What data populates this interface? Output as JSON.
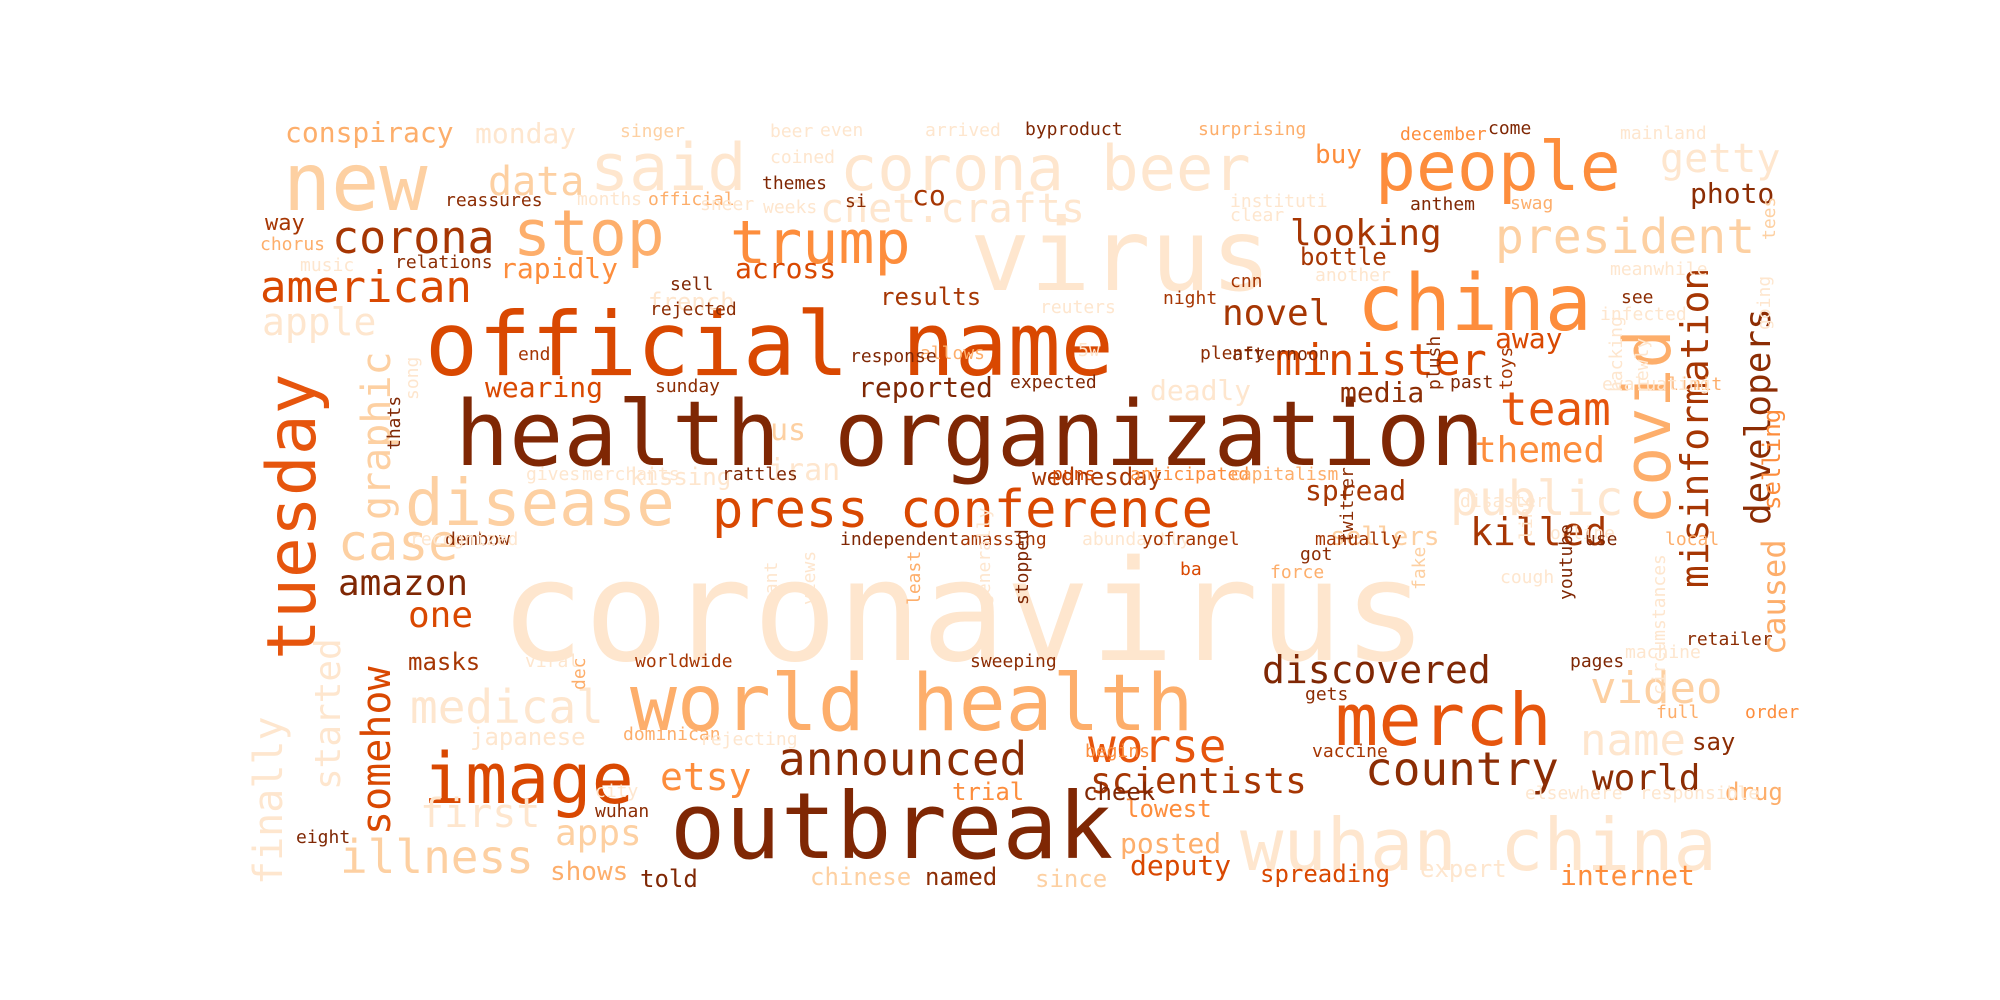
{
  "words": [
    {
      "text": "coronavirus",
      "color": "#fee6ce"
    },
    {
      "text": "health organization",
      "color": "#7f2704"
    },
    {
      "text": "official name",
      "color": "#d94801"
    },
    {
      "text": "outbreak",
      "color": "#7f2704"
    },
    {
      "text": "world health",
      "color": "#fdae6b"
    },
    {
      "text": "virus",
      "color": "#fee6ce"
    },
    {
      "text": "new",
      "color": "#fdd0a2"
    },
    {
      "text": "said",
      "color": "#fee6ce"
    },
    {
      "text": "corona beer",
      "color": "#fee6ce"
    },
    {
      "text": "people",
      "color": "#fd8d3c"
    },
    {
      "text": "china",
      "color": "#fd8d3c"
    },
    {
      "text": "press conference",
      "color": "#d94801"
    },
    {
      "text": "disease",
      "color": "#fdd0a2"
    },
    {
      "text": "stop",
      "color": "#fdae6b"
    },
    {
      "text": "trump",
      "color": "#fd8d3c"
    },
    {
      "text": "tuesday",
      "color": "#e6550d"
    },
    {
      "text": "image",
      "color": "#d94801"
    },
    {
      "text": "merch",
      "color": "#e6550d"
    },
    {
      "text": "wuhan china",
      "color": "#fee6ce"
    },
    {
      "text": "covid",
      "color": "#fdae6b"
    },
    {
      "text": "corona",
      "color": "#a63603"
    },
    {
      "text": "american",
      "color": "#d94801"
    },
    {
      "text": "president",
      "color": "#fdd0a2"
    },
    {
      "text": "minister",
      "color": "#d94801"
    },
    {
      "text": "misinformation",
      "color": "#a63603"
    },
    {
      "text": "developers",
      "color": "#8c2d04"
    },
    {
      "text": "caused",
      "color": "#fdae6b"
    },
    {
      "text": "cnet.crafts",
      "color": "#fee6ce"
    },
    {
      "text": "data",
      "color": "#fdd0a2"
    },
    {
      "text": "getty",
      "color": "#fee6ce"
    },
    {
      "text": "looking",
      "color": "#a63603"
    },
    {
      "text": "novel",
      "color": "#a63603"
    },
    {
      "text": "team",
      "color": "#e6550d"
    },
    {
      "text": "themed",
      "color": "#fd8d3c"
    },
    {
      "text": "public",
      "color": "#fee6ce"
    },
    {
      "text": "killed",
      "color": "#a63603"
    },
    {
      "text": "amazon",
      "color": "#7f2704"
    },
    {
      "text": "graphic",
      "color": "#fdd0a2"
    },
    {
      "text": "case",
      "color": "#fdd0a2"
    },
    {
      "text": "somehow",
      "color": "#d94801"
    },
    {
      "text": "medical",
      "color": "#fee6ce"
    },
    {
      "text": "illness",
      "color": "#fdd0a2"
    },
    {
      "text": "discovered",
      "color": "#7f2704"
    },
    {
      "text": "video",
      "color": "#fdd0a2"
    },
    {
      "text": "announced",
      "color": "#8c2d04"
    },
    {
      "text": "worse",
      "color": "#e6550d"
    },
    {
      "text": "country",
      "color": "#8c2d04"
    },
    {
      "text": "world",
      "color": "#8c2d04"
    },
    {
      "text": "scientists",
      "color": "#a63603"
    },
    {
      "text": "name",
      "color": "#fee6ce"
    },
    {
      "text": "etsy",
      "color": "#fd8d3c"
    },
    {
      "text": "apps",
      "color": "#fdd0a2"
    },
    {
      "text": "first",
      "color": "#fee6ce"
    },
    {
      "text": "finally",
      "color": "#fee6ce"
    },
    {
      "text": "started",
      "color": "#fee6ce"
    },
    {
      "text": "one",
      "color": "#d94801"
    },
    {
      "text": "masks",
      "color": "#a63603"
    },
    {
      "text": "apple",
      "color": "#fee6ce"
    },
    {
      "text": "rapidly",
      "color": "#fd8d3c"
    },
    {
      "text": "across",
      "color": "#d94801"
    },
    {
      "text": "conspiracy",
      "color": "#fdae6b"
    },
    {
      "text": "monday",
      "color": "#fee6ce"
    },
    {
      "text": "away",
      "color": "#d94801"
    },
    {
      "text": "media",
      "color": "#8c2d04"
    },
    {
      "text": "spread",
      "color": "#a63603"
    },
    {
      "text": "sellers",
      "color": "#fdd0a2"
    },
    {
      "text": "selling",
      "color": "#fd8d3c"
    },
    {
      "text": "photo",
      "color": "#8c2d04"
    },
    {
      "text": "buy",
      "color": "#fd8d3c"
    },
    {
      "text": "bottle",
      "color": "#a63603"
    },
    {
      "text": "wearing",
      "color": "#d94801"
    },
    {
      "text": "reported",
      "color": "#7f2704"
    },
    {
      "text": "deadly",
      "color": "#fee6ce"
    },
    {
      "text": "results",
      "color": "#a63603"
    },
    {
      "text": "wednesday",
      "color": "#a63603"
    },
    {
      "text": "us",
      "color": "#fdd0a2"
    },
    {
      "text": "iran",
      "color": "#fee6ce"
    },
    {
      "text": "say",
      "color": "#8c2d04"
    },
    {
      "text": "internet",
      "color": "#fd8d3c"
    },
    {
      "text": "shows",
      "color": "#fdae6b"
    },
    {
      "text": "told",
      "color": "#7f2704"
    },
    {
      "text": "chinese",
      "color": "#fdd0a2"
    },
    {
      "text": "named",
      "color": "#8c2d04"
    },
    {
      "text": "since",
      "color": "#fdd0a2"
    },
    {
      "text": "deputy",
      "color": "#d94801"
    },
    {
      "text": "spreading",
      "color": "#d94801"
    },
    {
      "text": "posted",
      "color": "#fdae6b"
    },
    {
      "text": "lowest",
      "color": "#fd8d3c"
    },
    {
      "text": "cheek",
      "color": "#7f2704"
    },
    {
      "text": "trial",
      "color": "#fd8d3c"
    },
    {
      "text": "drug",
      "color": "#fdae6b"
    },
    {
      "text": "expert",
      "color": "#fee6ce"
    },
    {
      "text": "co",
      "color": "#a63603"
    },
    {
      "text": "way",
      "color": "#a63603"
    },
    {
      "text": "french",
      "color": "#fee6ce"
    },
    {
      "text": "kissing",
      "color": "#fee6ce"
    },
    {
      "text": "japanese",
      "color": "#fee6ce"
    },
    {
      "text": "singer",
      "color": "#fdd0a2"
    },
    {
      "text": "beer",
      "color": "#fee6ce"
    },
    {
      "text": "even",
      "color": "#fee6ce"
    },
    {
      "text": "arrived",
      "color": "#fee6ce"
    },
    {
      "text": "byproduct",
      "color": "#7f2704"
    },
    {
      "text": "surprising",
      "color": "#fdae6b"
    },
    {
      "text": "december",
      "color": "#fd8d3c"
    },
    {
      "text": "come",
      "color": "#7f2704"
    },
    {
      "text": "mainland",
      "color": "#fee6ce"
    },
    {
      "text": "coined",
      "color": "#fee6ce"
    },
    {
      "text": "themes",
      "color": "#7f2704"
    },
    {
      "text": "reassures",
      "color": "#8c2d04"
    },
    {
      "text": "months",
      "color": "#fee6ce"
    },
    {
      "text": "official",
      "color": "#fdae6b"
    },
    {
      "text": "weeks",
      "color": "#fee6ce"
    },
    {
      "text": "si",
      "color": "#8c2d04"
    },
    {
      "text": "instituti",
      "color": "#fee6ce"
    },
    {
      "text": "anthem",
      "color": "#7f2704"
    },
    {
      "text": "swag",
      "color": "#fdae6b"
    },
    {
      "text": "clear",
      "color": "#fee6ce"
    },
    {
      "text": "tees",
      "color": "#fdd0a2"
    },
    {
      "text": "chorus",
      "color": "#fdae6b"
    },
    {
      "text": "music",
      "color": "#fee6ce"
    },
    {
      "text": "relations",
      "color": "#8c2d04"
    },
    {
      "text": "sneer",
      "color": "#fee6ce"
    },
    {
      "text": "sell",
      "color": "#7f2704"
    },
    {
      "text": "rejected",
      "color": "#8c2d04"
    },
    {
      "text": "another",
      "color": "#fee6ce"
    },
    {
      "text": "cnn",
      "color": "#a63603"
    },
    {
      "text": "meanwhile",
      "color": "#fee6ce"
    },
    {
      "text": "see",
      "color": "#8c2d04"
    },
    {
      "text": "going",
      "color": "#fee6ce"
    },
    {
      "text": "infected",
      "color": "#fee6ce"
    },
    {
      "text": "reuters",
      "color": "#fee6ce"
    },
    {
      "text": "night",
      "color": "#a63603"
    },
    {
      "text": "plenty",
      "color": "#8c2d04"
    },
    {
      "text": "end",
      "color": "#a63603"
    },
    {
      "text": "afternoon",
      "color": "#7f2704"
    },
    {
      "text": "allows",
      "color": "#fdae6b"
    },
    {
      "text": "response",
      "color": "#7f2704"
    },
    {
      "text": "5w",
      "color": "#fee6ce"
    },
    {
      "text": "sunday",
      "color": "#8c2d04"
    },
    {
      "text": "expected",
      "color": "#7f2704"
    },
    {
      "text": "past",
      "color": "#7f2704"
    },
    {
      "text": "plush",
      "color": "#8c2d04"
    },
    {
      "text": "toys",
      "color": "#a63603"
    },
    {
      "text": "newly",
      "color": "#fee6ce"
    },
    {
      "text": "hacking",
      "color": "#fee6ce"
    },
    {
      "text": "limit",
      "color": "#fdae6b"
    },
    {
      "text": "evaluating",
      "color": "#fee6ce"
    },
    {
      "text": "song",
      "color": "#fee6ce"
    },
    {
      "text": "thats",
      "color": "#7f2704"
    },
    {
      "text": "gives",
      "color": "#fee6ce"
    },
    {
      "text": "merchants",
      "color": "#fee6ce"
    },
    {
      "text": "rattles",
      "color": "#7f2704"
    },
    {
      "text": "puns",
      "color": "#d94801"
    },
    {
      "text": "anticipated",
      "color": "#fd8d3c"
    },
    {
      "text": "capitalism",
      "color": "#fdae6b"
    },
    {
      "text": "dembow",
      "color": "#8c2d04"
    },
    {
      "text": "recognized",
      "color": "#fee6ce"
    },
    {
      "text": "disaster",
      "color": "#fee6ce"
    },
    {
      "text": "independent",
      "color": "#7f2704"
    },
    {
      "text": "amassing",
      "color": "#a63603"
    },
    {
      "text": "abundantly",
      "color": "#fee6ce"
    },
    {
      "text": "yofrangel",
      "color": "#a63603"
    },
    {
      "text": "manually",
      "color": "#a63603"
    },
    {
      "text": "twitter",
      "color": "#8c2d04"
    },
    {
      "text": "online",
      "color": "#fee6ce"
    },
    {
      "text": "link",
      "color": "#fee6ce"
    },
    {
      "text": "use",
      "color": "#7f2704"
    },
    {
      "text": "local",
      "color": "#fdae6b"
    },
    {
      "text": "got",
      "color": "#8c2d04"
    },
    {
      "text": "ba",
      "color": "#d94801"
    },
    {
      "text": "force",
      "color": "#fdae6b"
    },
    {
      "text": "fake",
      "color": "#fdd0a2"
    },
    {
      "text": "youtube",
      "color": "#7f2704"
    },
    {
      "text": "cough",
      "color": "#fee6ce"
    },
    {
      "text": "retailer",
      "color": "#8c2d04"
    },
    {
      "text": "machine",
      "color": "#fee6ce"
    },
    {
      "text": "circumstances",
      "color": "#fee6ce"
    },
    {
      "text": "views",
      "color": "#fee6ce"
    },
    {
      "text": "cant",
      "color": "#fee6ce"
    },
    {
      "text": "least",
      "color": "#fdae6b"
    },
    {
      "text": "stopped",
      "color": "#7f2704"
    },
    {
      "text": "generally",
      "color": "#fee6ce"
    },
    {
      "text": "dec",
      "color": "#fdae6b"
    },
    {
      "text": "viral",
      "color": "#fee6ce"
    },
    {
      "text": "worldwide",
      "color": "#a63603"
    },
    {
      "text": "sweeping",
      "color": "#8c2d04"
    },
    {
      "text": "pages",
      "color": "#7f2704"
    },
    {
      "text": "gets",
      "color": "#8c2d04"
    },
    {
      "text": "full",
      "color": "#fdae6b"
    },
    {
      "text": "order",
      "color": "#fd8d3c"
    },
    {
      "text": "dominican",
      "color": "#fdae6b"
    },
    {
      "text": "rejecting",
      "color": "#fee6ce"
    },
    {
      "text": "begins",
      "color": "#fd8d3c"
    },
    {
      "text": "vaccine",
      "color": "#a63603"
    },
    {
      "text": "city",
      "color": "#fee6ce"
    },
    {
      "text": "elsewhere",
      "color": "#fee6ce"
    },
    {
      "text": "responsible",
      "color": "#fee6ce"
    },
    {
      "text": "wuhan",
      "color": "#8c2d04"
    },
    {
      "text": "eight",
      "color": "#7f2704"
    }
  ]
}
